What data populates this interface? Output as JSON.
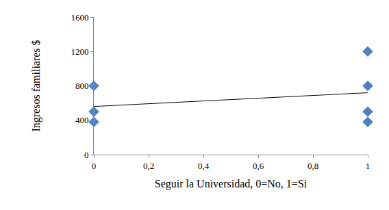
{
  "chart_data": {
    "type": "scatter",
    "xlabel": "Seguir la Universidad, 0=No, 1=Si",
    "ylabel": "Ingresos familiares $",
    "xlim": [
      0,
      1
    ],
    "xticks": [
      0,
      {
        "value": 0.2,
        "label": "0,2"
      },
      {
        "value": 0.4,
        "label": "0,4"
      },
      {
        "value": 0.6,
        "label": "0,6"
      },
      {
        "value": 0.8,
        "label": "0,8"
      },
      1
    ],
    "ylim": [
      0,
      1600
    ],
    "yticks": [
      0,
      400,
      800,
      1200,
      1600
    ],
    "grid": false,
    "series": [
      {
        "type": "scatter",
        "marker": "diamond",
        "color": "#4f81bd",
        "x": [
          0,
          0,
          0,
          1,
          1,
          1,
          1
        ],
        "values": [
          800,
          500,
          380,
          1200,
          800,
          500,
          380
        ]
      },
      {
        "type": "line",
        "line_style": "solid",
        "color": "#000000",
        "x": [
          0,
          1
        ],
        "values": [
          560,
          720
        ]
      }
    ]
  }
}
